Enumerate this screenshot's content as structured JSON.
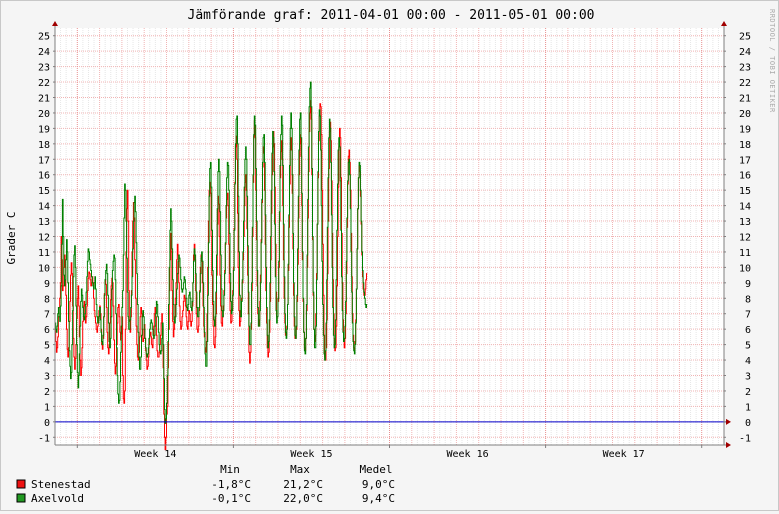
{
  "chart_data": {
    "type": "line",
    "title": "Jämförande graf: 2011-04-01 00:00 - 2011-05-01 00:00",
    "ylabel": "Grader C",
    "watermark": "RRDTOOL / TOBI OETIKER",
    "ylim": [
      -1.5,
      25.5
    ],
    "yticks": [
      -1,
      0,
      1,
      2,
      3,
      4,
      5,
      6,
      7,
      8,
      9,
      10,
      11,
      12,
      13,
      14,
      15,
      16,
      17,
      18,
      19,
      20,
      21,
      22,
      23,
      24,
      25
    ],
    "xlim": [
      0,
      30
    ],
    "xtick_labels": [
      {
        "label": "Week 14",
        "at": 4.5
      },
      {
        "label": "Week 15",
        "at": 11.5
      },
      {
        "label": "Week 16",
        "at": 18.5
      },
      {
        "label": "Week 17",
        "at": 25.5
      }
    ],
    "week_boundaries": [
      1,
      8,
      15,
      22,
      29
    ],
    "legend_headers": [
      "Min",
      "Max",
      "Medel"
    ],
    "series": [
      {
        "name": "Stenestad",
        "color": "#ff0000",
        "legend_color": "#ee1111",
        "min": "-1,8°C",
        "max": "21,2°C",
        "mean": "9,0°C",
        "days": [
          [
            6.0,
            5.2,
            4.5,
            4.8,
            5.5,
            6.8,
            7.4,
            8.0,
            9.0,
            12.0,
            10.5,
            8.5,
            8.8,
            10.0,
            10.8,
            10.0,
            8.2,
            6.0,
            4.7,
            4.2,
            4.8,
            6.5,
            7.8,
            9.5,
            10.3,
            9.6,
            7.5,
            5.4,
            4.2,
            3.4,
            4.1,
            5.0,
            6.7,
            8.0
          ],
          [
            8.0,
            8.8,
            7.5,
            5.5,
            4.0,
            3.0,
            3.5,
            4.8,
            6.5,
            7.5,
            7.8,
            7.0,
            6.4,
            6.8,
            7.5,
            8.5,
            9.3,
            9.7,
            9.6,
            9.2,
            8.8,
            9.0,
            9.4,
            9.0,
            8.0,
            7.2,
            6.8,
            6.4,
            6.0,
            5.8,
            6.2,
            6.8,
            7.2,
            7.5
          ],
          [
            7.5,
            7.0,
            6.0,
            5.0,
            4.7,
            5.4,
            6.8,
            8.3,
            9.2,
            8.9,
            7.4,
            5.8,
            4.8,
            4.4,
            5.0,
            6.4,
            7.9,
            8.8,
            9.3,
            9.0,
            7.5,
            5.3,
            3.8,
            3.1,
            3.6,
            5.0,
            6.4,
            7.4,
            7.6,
            6.8,
            5.8,
            5.3,
            5.7,
            6.8
          ],
          [
            6.8,
            3.0,
            1.5,
            1.2,
            2.0,
            6.0,
            11.0,
            13.8,
            15.0,
            13.0,
            8.5,
            6.5,
            5.8,
            6.8,
            8.5,
            11.0,
            13.0,
            14.2,
            13.2,
            10.5,
            8.0,
            6.2,
            5.0,
            4.2,
            4.0,
            4.5,
            5.5,
            6.8,
            7.4,
            7.0,
            6.0,
            5.2,
            5.4,
            6.3
          ],
          [
            6.3,
            5.4,
            4.6,
            4.0,
            3.4,
            3.6,
            4.2,
            5.0,
            5.6,
            5.8,
            5.5,
            5.0,
            4.8,
            5.4,
            6.2,
            7.0,
            7.4,
            6.8,
            5.6,
            4.6,
            4.2,
            4.2,
            4.5,
            5.0,
            5.6,
            6.4,
            7.0,
            6.2,
            3.5,
            0.5,
            -1.0,
            -1.8,
            -1.0,
            0.5
          ],
          [
            0.5,
            1.0,
            3.5,
            6.0,
            8.5,
            10.5,
            12.2,
            11.0,
            8.5,
            6.5,
            5.5,
            6.0,
            6.8,
            8.0,
            9.0,
            10.5,
            11.5,
            10.8,
            9.0,
            7.5,
            6.5,
            6.0,
            6.2,
            6.8,
            7.2,
            7.8,
            8.2,
            8.0,
            7.5,
            6.8,
            6.2,
            6.0,
            6.5,
            7.2
          ],
          [
            7.2,
            7.0,
            6.5,
            6.2,
            6.5,
            7.5,
            9.0,
            10.8,
            11.5,
            10.5,
            8.5,
            7.0,
            6.0,
            5.8,
            6.2,
            7.2,
            8.5,
            10.0,
            10.8,
            10.4,
            9.0,
            7.5,
            6.2,
            5.5,
            4.8,
            4.5,
            5.2,
            7.0,
            10.0,
            13.0,
            15.0,
            15.5,
            14.8,
            12.0
          ],
          [
            12.0,
            9.5,
            7.6,
            6.2,
            5.0,
            4.8,
            5.5,
            7.0,
            9.5,
            12.8,
            14.6,
            14.1,
            12.0,
            9.5,
            7.5,
            6.4,
            6.2,
            6.8,
            7.5,
            8.5,
            9.8,
            11.5,
            13.2,
            14.4,
            14.8,
            14.0,
            11.5,
            9.0,
            7.2,
            6.4,
            6.5,
            7.3,
            8.5,
            10.0
          ],
          [
            10.0,
            12.5,
            15.5,
            17.8,
            18.5,
            17.0,
            13.5,
            10.0,
            7.2,
            6.2,
            6.5,
            7.2,
            8.0,
            9.0,
            10.5,
            12.0,
            14.0,
            15.5,
            16.0,
            15.0,
            12.5,
            9.5,
            7.0,
            4.5,
            3.8,
            4.5,
            6.0,
            8.5,
            12.0,
            15.5,
            18.5,
            19.5,
            18.4,
            15.0
          ],
          [
            15.0,
            11.8,
            8.8,
            7.0,
            6.2,
            6.6,
            7.8,
            9.5,
            11.8,
            14.2,
            16.5,
            17.8,
            17.4,
            15.0,
            11.5,
            8.5,
            6.4,
            4.8,
            4.2,
            4.5,
            5.8,
            7.8,
            10.5,
            13.5,
            16.0,
            17.8,
            18.8,
            18.0,
            15.2,
            11.5,
            8.4,
            6.8,
            6.8,
            7.8
          ],
          [
            7.8,
            10.0,
            13.0,
            15.8,
            17.5,
            18.2,
            17.0,
            14.0,
            10.5,
            8.0,
            6.4,
            5.6,
            5.6,
            6.2,
            7.6,
            9.8,
            12.6,
            15.4,
            17.6,
            18.4,
            17.6,
            14.8,
            11.2,
            8.2,
            6.2,
            5.4,
            5.4,
            6.0,
            7.8,
            10.2,
            13.2,
            16.0,
            18.0,
            18.6
          ],
          [
            18.6,
            17.2,
            14.0,
            10.5,
            7.8,
            5.8,
            4.8,
            4.6,
            5.4,
            7.2,
            10.0,
            13.2,
            16.2,
            18.8,
            20.0,
            20.8,
            19.6,
            16.0,
            11.8,
            8.2,
            6.0,
            5.2,
            5.6,
            7.0,
            9.6,
            12.8,
            15.8,
            18.2,
            19.8,
            20.6,
            20.4,
            18.6,
            15.0,
            11.5
          ],
          [
            11.5,
            8.2,
            5.6,
            4.2,
            4.0,
            4.8,
            6.6,
            9.6,
            13.0,
            16.4,
            18.8,
            19.4,
            18.2,
            15.6,
            12.2,
            9.2,
            7.0,
            5.4,
            4.6,
            4.8,
            6.2,
            8.8,
            12.0,
            15.2,
            17.8,
            19.0,
            18.4,
            15.8,
            12.2,
            9.0,
            6.6,
            5.2,
            4.8,
            5.4
          ],
          [
            5.4,
            7.0,
            9.6,
            12.6,
            15.4,
            17.2,
            17.6,
            16.8,
            15.0,
            12.2,
            9.4,
            7.0,
            5.6,
            4.8,
            4.6,
            5.2,
            6.6,
            8.6,
            11.2,
            13.8,
            15.8,
            16.6,
            16.2,
            14.6,
            12.8,
            10.8,
            9.4,
            8.6,
            8.2,
            8.2,
            8.6,
            9.2,
            9.6,
            8.4
          ]
        ]
      },
      {
        "name": "Axelvold",
        "color": "#008000",
        "legend_color": "#229922",
        "min": "-0,1°C",
        "max": "22,0°C",
        "mean": "9,4°C",
        "days": [
          [
            6.4,
            6.0,
            5.8,
            6.2,
            7.0,
            7.4,
            6.8,
            6.5,
            7.5,
            8.8,
            11.5,
            14.4,
            12.0,
            9.5,
            8.8,
            9.2,
            10.5,
            11.8,
            11.0,
            9.0,
            6.5,
            4.6,
            3.6,
            2.8,
            3.2,
            5.0,
            7.2,
            9.4,
            10.8,
            11.4,
            10.0,
            7.5,
            5.0,
            3.2
          ],
          [
            3.2,
            2.2,
            3.0,
            4.4,
            6.2,
            7.8,
            8.6,
            8.2,
            7.4,
            6.8,
            6.6,
            7.0,
            7.6,
            8.4,
            9.4,
            10.4,
            11.2,
            11.0,
            10.5,
            10.2,
            9.8,
            9.4,
            9.0,
            8.8,
            8.6,
            9.0,
            9.4,
            8.6,
            7.6,
            6.8,
            6.4,
            6.4,
            6.8,
            7.4
          ],
          [
            7.4,
            6.6,
            5.8,
            5.2,
            5.0,
            5.6,
            6.8,
            8.2,
            9.2,
            9.8,
            10.2,
            9.6,
            8.2,
            6.4,
            5.2,
            4.8,
            5.4,
            6.8,
            8.6,
            9.8,
            10.4,
            10.8,
            10.6,
            9.2,
            7.0,
            4.8,
            3.0,
            1.8,
            1.2,
            1.4,
            2.6,
            4.5,
            6.2,
            7.4
          ],
          [
            7.4,
            8.5,
            10.8,
            13.2,
            15.4,
            15.0,
            13.0,
            10.6,
            8.4,
            6.8,
            6.0,
            6.0,
            6.6,
            7.4,
            8.2,
            9.4,
            11.2,
            13.0,
            14.2,
            14.6,
            13.6,
            11.6,
            9.6,
            7.6,
            5.8,
            4.2,
            3.4,
            3.4,
            4.2,
            5.6,
            6.8,
            7.2,
            6.8,
            6.0
          ],
          [
            6.0,
            5.4,
            4.8,
            4.4,
            4.2,
            4.4,
            4.8,
            5.4,
            6.0,
            6.4,
            6.6,
            6.4,
            6.0,
            5.6,
            5.4,
            5.6,
            6.2,
            7.0,
            7.8,
            7.6,
            6.8,
            5.8,
            5.0,
            4.6,
            4.4,
            4.6,
            5.4,
            6.4,
            5.0,
            2.8,
            0.8,
            -0.1,
            0.2,
            1.2
          ],
          [
            1.2,
            3.0,
            5.2,
            7.6,
            10.0,
            12.4,
            13.8,
            13.0,
            11.2,
            9.2,
            7.6,
            6.6,
            6.4,
            6.8,
            7.6,
            8.6,
            9.6,
            10.4,
            10.8,
            10.6,
            10.0,
            9.2,
            8.6,
            8.4,
            8.6,
            9.0,
            9.4,
            9.2,
            8.6,
            8.0,
            7.4,
            7.2,
            7.6,
            8.2
          ],
          [
            8.2,
            8.4,
            8.0,
            7.4,
            7.2,
            7.8,
            9.0,
            10.4,
            11.2,
            10.8,
            9.6,
            8.4,
            7.4,
            6.8,
            6.8,
            7.4,
            8.4,
            9.6,
            10.6,
            11.0,
            10.4,
            9.0,
            7.4,
            5.8,
            4.4,
            3.6,
            3.6,
            5.2,
            8.2,
            11.6,
            14.6,
            16.4,
            16.8,
            15.2
          ],
          [
            15.2,
            12.4,
            9.8,
            7.8,
            6.6,
            6.2,
            6.8,
            8.4,
            10.8,
            13.8,
            16.2,
            17.0,
            16.2,
            13.6,
            10.8,
            8.6,
            7.2,
            6.8,
            7.2,
            8.2,
            9.6,
            11.6,
            14.0,
            15.8,
            16.8,
            16.6,
            15.0,
            12.2,
            9.6,
            7.8,
            7.0,
            7.2,
            8.2,
            9.8
          ],
          [
            9.8,
            12.4,
            15.4,
            18.0,
            19.6,
            19.8,
            18.0,
            14.6,
            11.0,
            8.2,
            6.8,
            6.8,
            7.8,
            9.2,
            11.0,
            13.0,
            15.2,
            17.0,
            17.8,
            17.0,
            14.6,
            11.4,
            8.4,
            6.2,
            5.0,
            5.0,
            6.4,
            9.0,
            12.6,
            16.0,
            18.6,
            19.8,
            19.2,
            16.4
          ],
          [
            16.4,
            13.0,
            9.8,
            7.4,
            6.2,
            6.2,
            7.2,
            9.0,
            11.6,
            14.4,
            16.8,
            18.4,
            18.6,
            16.8,
            13.4,
            10.0,
            7.4,
            5.6,
            4.8,
            5.2,
            6.6,
            9.0,
            12.0,
            15.0,
            17.4,
            18.8,
            18.4,
            16.2,
            12.8,
            9.4,
            7.2,
            6.4,
            6.8,
            8.0
          ],
          [
            8.0,
            10.4,
            13.6,
            16.6,
            18.6,
            19.8,
            19.2,
            16.6,
            12.8,
            9.4,
            7.0,
            5.8,
            5.4,
            6.0,
            7.6,
            10.2,
            13.4,
            16.6,
            19.0,
            20.0,
            19.0,
            16.0,
            12.2,
            9.0,
            6.8,
            5.6,
            5.4,
            6.2,
            8.2,
            11.2,
            14.6,
            17.6,
            19.6,
            20.0
          ],
          [
            20.0,
            18.4,
            14.8,
            11.0,
            8.0,
            5.8,
            4.6,
            4.4,
            5.4,
            7.6,
            10.8,
            14.4,
            17.8,
            20.4,
            21.6,
            22.0,
            20.4,
            16.4,
            12.0,
            8.4,
            6.0,
            4.8,
            4.8,
            6.2,
            9.2,
            12.8,
            16.2,
            18.8,
            20.2,
            19.8,
            17.6,
            14.0,
            10.4,
            7.6
          ],
          [
            7.6,
            5.6,
            4.4,
            4.0,
            4.6,
            6.4,
            9.2,
            12.6,
            15.8,
            18.4,
            19.6,
            19.0,
            16.8,
            13.4,
            10.0,
            7.4,
            5.6,
            4.8,
            5.0,
            6.6,
            9.2,
            12.4,
            15.4,
            17.6,
            18.4,
            17.8,
            15.6,
            12.4,
            9.4,
            7.2,
            5.8,
            5.2,
            5.4,
            6.2
          ],
          [
            6.2,
            7.8,
            10.4,
            13.2,
            15.6,
            16.8,
            17.0,
            16.0,
            13.8,
            11.0,
            8.4,
            6.4,
            5.2,
            4.6,
            4.4,
            5.0,
            6.4,
            8.6,
            11.2,
            13.8,
            15.8,
            16.8,
            16.6,
            15.0,
            13.0,
            11.0,
            9.8,
            9.0,
            8.4,
            8.0,
            7.6,
            7.4,
            7.6,
            7.6
          ]
        ]
      }
    ]
  }
}
